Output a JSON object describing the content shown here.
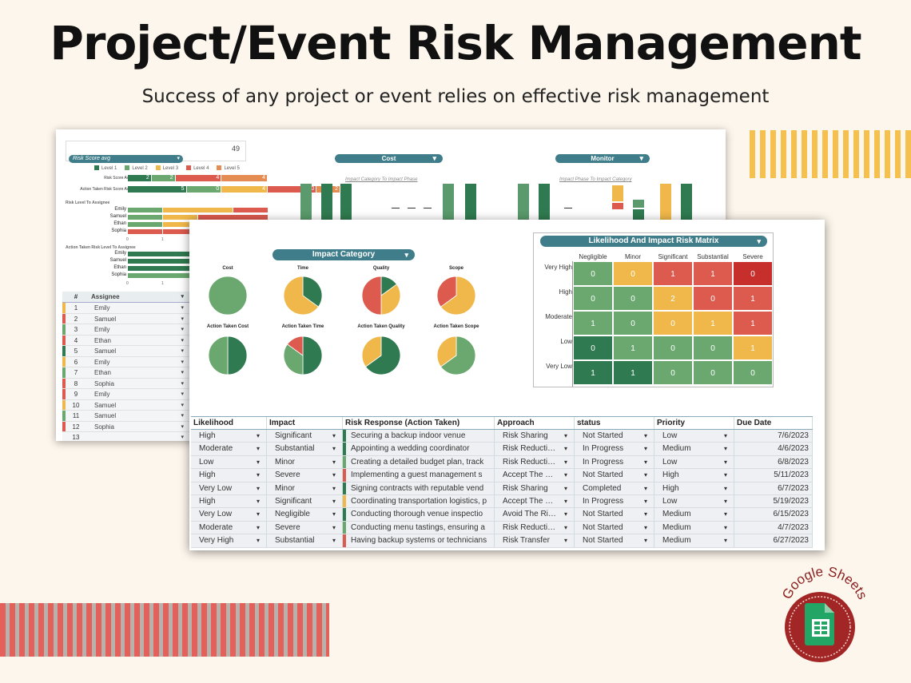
{
  "header": {
    "title": "Project/Event Risk Management",
    "subtitle": "Success of any project or event relies on effective risk management"
  },
  "colors": {
    "green": "#6aa86f",
    "dark_green": "#2f7a50",
    "yellow": "#f0b84a",
    "orange": "#e48c52",
    "red": "#dd5a4e",
    "dark_red": "#c62f2c",
    "teal": "#3f7d8a"
  },
  "back_sheet": {
    "kpi_value": "49",
    "kpi_dropdown": "Risk Score avg",
    "legend": [
      "Level 1",
      "Level 2",
      "Level 3",
      "Level 4",
      "Level 5"
    ],
    "risk_score_avg_label": "Risk Score Avg",
    "risk_score_avg": [
      2,
      2,
      0,
      4,
      4
    ],
    "action_score_avg_label": "Action Taken Risk Score Avg",
    "action_score_avg": [
      5,
      0,
      4,
      0,
      2
    ],
    "risk_level_caption": "Risk Level To Assignee",
    "action_level_caption": "Action Taken Risk Level To Assignee",
    "assignees": [
      "Emily",
      "Samuel",
      "Ethan",
      "Sophia"
    ],
    "axis_ticks": [
      "0",
      "1"
    ],
    "cost_dropdown": "Cost",
    "monitor_dropdown": "Monitor",
    "chart_caption_1": "Impact Category To Impact Phase",
    "chart_caption_2": "Impact Phase To Impact Category",
    "table_headers": [
      "#",
      "Assignee"
    ],
    "table_rows": [
      {
        "num": "1",
        "who": "Emily",
        "color": "#f0b84a"
      },
      {
        "num": "2",
        "who": "Samuel",
        "color": "#dd5a4e"
      },
      {
        "num": "3",
        "who": "Emily",
        "color": "#6aa86f"
      },
      {
        "num": "4",
        "who": "Ethan",
        "color": "#dd5a4e"
      },
      {
        "num": "5",
        "who": "Samuel",
        "color": "#2f7a50"
      },
      {
        "num": "6",
        "who": "Emily",
        "color": "#f0b84a"
      },
      {
        "num": "7",
        "who": "Ethan",
        "color": "#6aa86f"
      },
      {
        "num": "8",
        "who": "Sophia",
        "color": "#dd5a4e"
      },
      {
        "num": "9",
        "who": "Emily",
        "color": "#dd5a4e"
      },
      {
        "num": "10",
        "who": "Samuel",
        "color": "#f0b84a"
      },
      {
        "num": "11",
        "who": "Samuel",
        "color": "#6aa86f"
      },
      {
        "num": "12",
        "who": "Sophia",
        "color": "#dd5a4e"
      },
      {
        "num": "13",
        "who": "",
        "color": "transparent"
      }
    ]
  },
  "front_sheet": {
    "impact_dropdown": "Impact Category",
    "pies": [
      {
        "label": "Cost",
        "slices": [
          {
            "value": 1,
            "color": "#6aa86f"
          }
        ]
      },
      {
        "label": "Time",
        "slices": [
          {
            "value": 0.35,
            "color": "#2f7a50"
          },
          {
            "value": 0.65,
            "color": "#f0b84a"
          }
        ]
      },
      {
        "label": "Quality",
        "slices": [
          {
            "value": 0.15,
            "color": "#2f7a50"
          },
          {
            "value": 0.35,
            "color": "#f0b84a"
          },
          {
            "value": 0.5,
            "color": "#dd5a4e"
          }
        ]
      },
      {
        "label": "Scope",
        "slices": [
          {
            "value": 0.65,
            "color": "#f0b84a"
          },
          {
            "value": 0.35,
            "color": "#dd5a4e"
          }
        ]
      },
      {
        "label": "Action Taken Cost",
        "slices": [
          {
            "value": 0.5,
            "color": "#2f7a50"
          },
          {
            "value": 0.5,
            "color": "#6aa86f"
          }
        ]
      },
      {
        "label": "Action Taken Time",
        "slices": [
          {
            "value": 0.5,
            "color": "#2f7a50"
          },
          {
            "value": 0.35,
            "color": "#6aa86f"
          },
          {
            "value": 0.15,
            "color": "#dd5a4e"
          }
        ]
      },
      {
        "label": "Action Taken Quality",
        "slices": [
          {
            "value": 0.65,
            "color": "#2f7a50"
          },
          {
            "value": 0.35,
            "color": "#f0b84a"
          }
        ]
      },
      {
        "label": "Action Taken Scope",
        "slices": [
          {
            "value": 0.65,
            "color": "#6aa86f"
          },
          {
            "value": 0.35,
            "color": "#f0b84a"
          }
        ]
      }
    ],
    "matrix": {
      "title": "Likelihood And Impact Risk Matrix",
      "columns": [
        "Negligible",
        "Minor",
        "Significant",
        "Substantial",
        "Severe"
      ],
      "rows": [
        "Very High",
        "High",
        "Moderate",
        "Low",
        "Very Low"
      ],
      "values": [
        [
          "0",
          "0",
          "1",
          "1",
          "0"
        ],
        [
          "0",
          "0",
          "2",
          "0",
          "1"
        ],
        [
          "1",
          "0",
          "0",
          "1",
          "1"
        ],
        [
          "0",
          "1",
          "0",
          "0",
          "1"
        ],
        [
          "1",
          "1",
          "0",
          "0",
          "0"
        ]
      ],
      "colors": [
        [
          "#6aa86f",
          "#f0b84a",
          "#dd5a4e",
          "#dd5a4e",
          "#c62f2c"
        ],
        [
          "#6aa86f",
          "#6aa86f",
          "#f0b84a",
          "#dd5a4e",
          "#dd5a4e"
        ],
        [
          "#6aa86f",
          "#6aa86f",
          "#f0b84a",
          "#f0b84a",
          "#dd5a4e"
        ],
        [
          "#2f7a50",
          "#6aa86f",
          "#6aa86f",
          "#6aa86f",
          "#f0b84a"
        ],
        [
          "#2f7a50",
          "#2f7a50",
          "#6aa86f",
          "#6aa86f",
          "#6aa86f"
        ]
      ]
    },
    "table": {
      "headers": [
        "Likelihood",
        "Impact",
        "Risk Response (Action Taken)",
        "Approach",
        "status",
        "Priority",
        "Due Date"
      ],
      "rows": [
        {
          "likelihood": "High",
          "impact": "Significant",
          "response": "Securing a backup indoor venue",
          "approach": "Risk Sharing",
          "status": "Not Started",
          "priority": "Low",
          "due": "7/6/2023",
          "mark": "#2f7a50"
        },
        {
          "likelihood": "Moderate",
          "impact": "Substantial",
          "response": "Appointing a wedding coordinator",
          "approach": "Risk Reducti…",
          "status": "In Progress",
          "priority": "Medium",
          "due": "4/6/2023",
          "mark": "#2f7a50"
        },
        {
          "likelihood": "Low",
          "impact": "Minor",
          "response": "Creating a detailed budget plan, track",
          "approach": "Risk Reducti…",
          "status": "In Progress",
          "priority": "Low",
          "due": "6/8/2023",
          "mark": "#6aa86f"
        },
        {
          "likelihood": "High",
          "impact": "Severe",
          "response": "Implementing a guest management s",
          "approach": "Accept The …",
          "status": "Not Started",
          "priority": "High",
          "due": "5/11/2023",
          "mark": "#dd5a4e"
        },
        {
          "likelihood": "Very Low",
          "impact": "Minor",
          "response": "Signing contracts with reputable vend",
          "approach": "Risk Sharing",
          "status": "Completed",
          "priority": "High",
          "due": "6/7/2023",
          "mark": "#2f7a50"
        },
        {
          "likelihood": "High",
          "impact": "Significant",
          "response": "Coordinating transportation logistics, p",
          "approach": "Accept The …",
          "status": "In Progress",
          "priority": "Low",
          "due": "5/19/2023",
          "mark": "#f0b84a"
        },
        {
          "likelihood": "Very Low",
          "impact": "Negligible",
          "response": "Conducting thorough venue inspectio",
          "approach": "Avoid The Ri…",
          "status": "Not Started",
          "priority": "Medium",
          "due": "6/15/2023",
          "mark": "#2f7a50"
        },
        {
          "likelihood": "Moderate",
          "impact": "Severe",
          "response": "Conducting menu tastings, ensuring a",
          "approach": "Risk Reducti…",
          "status": "Not Started",
          "priority": "Medium",
          "due": "4/7/2023",
          "mark": "#6aa86f"
        },
        {
          "likelihood": "Very High",
          "impact": "Substantial",
          "response": "Having backup systems or technicians",
          "approach": "Risk Transfer",
          "status": "Not Started",
          "priority": "Medium",
          "due": "6/27/2023",
          "mark": "#dd5a4e"
        }
      ]
    }
  },
  "badge": {
    "text": "Google Sheets"
  }
}
